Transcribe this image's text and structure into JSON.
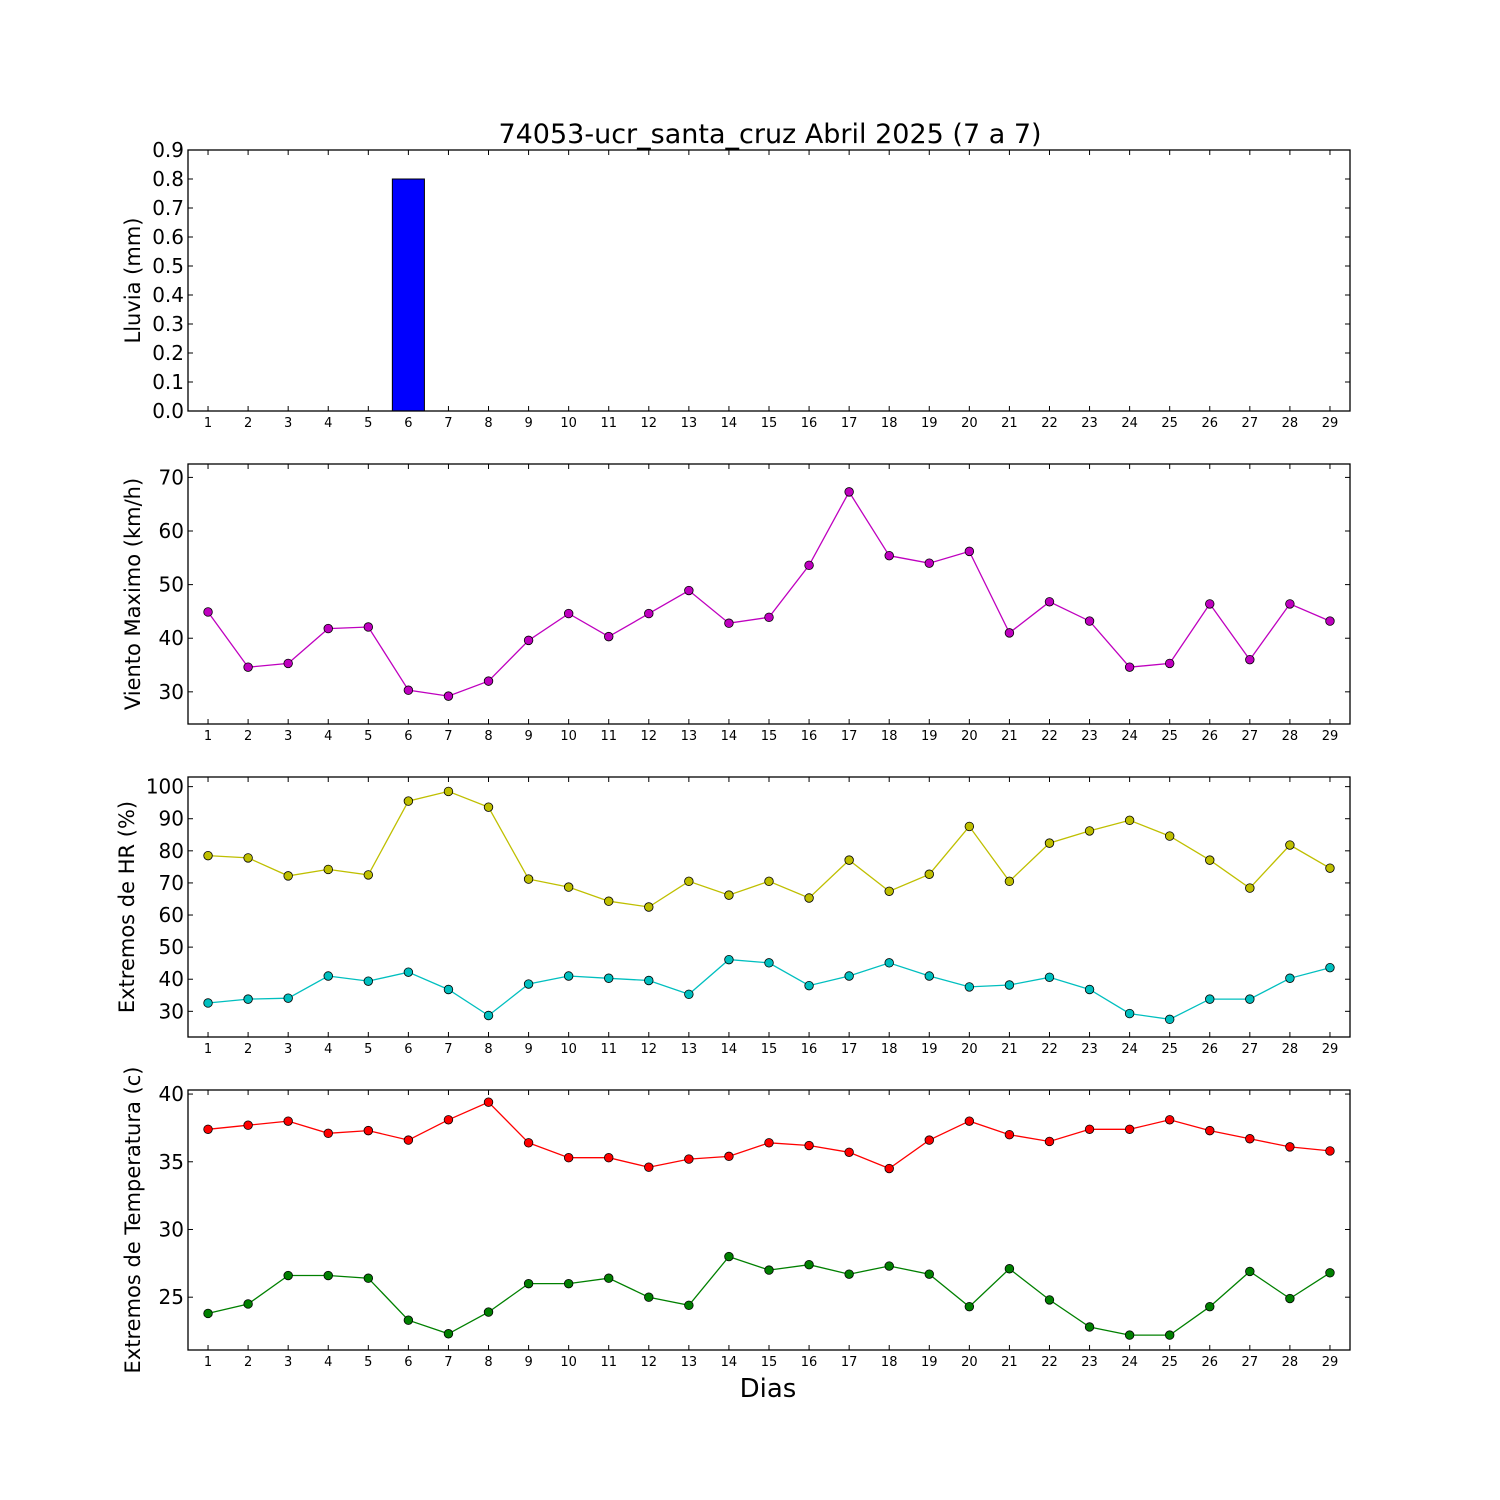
{
  "figure": {
    "title": "74053-ucr_santa_cruz Abril 2025  (7 a 7)",
    "xlabel": "Dias"
  },
  "chart_data": [
    {
      "type": "bar",
      "ylabel": "Lluvia (mm)",
      "ylim": [
        0,
        0.9
      ],
      "yticks": [
        0.0,
        0.1,
        0.2,
        0.3,
        0.4,
        0.5,
        0.6,
        0.7,
        0.8,
        0.9
      ],
      "ytick_decimals": 1,
      "categories": [
        1,
        2,
        3,
        4,
        5,
        6,
        7,
        8,
        9,
        10,
        11,
        12,
        13,
        14,
        15,
        16,
        17,
        18,
        19,
        20,
        21,
        22,
        23,
        24,
        25,
        26,
        27,
        28,
        29
      ],
      "series": [
        {
          "color": "#0000ff",
          "values": [
            0,
            0,
            0,
            0,
            0,
            0.8,
            0,
            0,
            0,
            0,
            0,
            0,
            0,
            0,
            0,
            0,
            0,
            0,
            0,
            0,
            0,
            0,
            0,
            0,
            0,
            0,
            0,
            0,
            0
          ]
        }
      ]
    },
    {
      "type": "line",
      "ylabel": "Viento Maximo (km/h)",
      "ylim": [
        24,
        72.5
      ],
      "yticks": [
        30,
        40,
        50,
        60,
        70
      ],
      "ytick_decimals": 0,
      "categories": [
        1,
        2,
        3,
        4,
        5,
        6,
        7,
        8,
        9,
        10,
        11,
        12,
        13,
        14,
        15,
        16,
        17,
        18,
        19,
        20,
        21,
        22,
        23,
        24,
        25,
        26,
        27,
        28,
        29
      ],
      "series": [
        {
          "color": "#bf00bf",
          "values": [
            44.9,
            34.6,
            35.3,
            41.8,
            42.1,
            30.3,
            29.2,
            32.0,
            39.6,
            44.6,
            40.3,
            44.6,
            48.9,
            42.8,
            43.9,
            53.6,
            67.3,
            55.4,
            54.0,
            56.2,
            41.0,
            46.8,
            43.2,
            34.6,
            35.3,
            46.4,
            36.0,
            46.4,
            43.2
          ]
        }
      ]
    },
    {
      "type": "line",
      "ylabel": "Extremos de HR (%)",
      "ylim": [
        22,
        103
      ],
      "yticks": [
        30,
        40,
        50,
        60,
        70,
        80,
        90,
        100
      ],
      "ytick_decimals": 0,
      "categories": [
        1,
        2,
        3,
        4,
        5,
        6,
        7,
        8,
        9,
        10,
        11,
        12,
        13,
        14,
        15,
        16,
        17,
        18,
        19,
        20,
        21,
        22,
        23,
        24,
        25,
        26,
        27,
        28,
        29
      ],
      "series": [
        {
          "color": "#bfbf00",
          "values": [
            78.5,
            77.8,
            72.2,
            74.2,
            72.5,
            95.5,
            98.5,
            93.6,
            71.2,
            68.7,
            64.3,
            62.5,
            70.5,
            66.2,
            70.5,
            65.3,
            77.1,
            67.4,
            72.7,
            87.6,
            70.5,
            82.4,
            86.2,
            89.5,
            84.6,
            77.1,
            68.4,
            81.8,
            74.6
          ]
        },
        {
          "color": "#00bfbf",
          "values": [
            32.6,
            33.8,
            34.1,
            41.0,
            39.4,
            42.2,
            36.8,
            28.7,
            38.5,
            41.0,
            40.3,
            39.6,
            35.3,
            46.1,
            45.1,
            38.0,
            41.0,
            45.1,
            41.0,
            37.6,
            38.2,
            40.6,
            36.8,
            29.3,
            27.5,
            33.8,
            33.8,
            40.3,
            43.6
          ]
        }
      ]
    },
    {
      "type": "line",
      "ylabel": "Extremos de Temperatura (c)",
      "ylim": [
        21.1,
        40.3
      ],
      "yticks": [
        25,
        30,
        35,
        40
      ],
      "ytick_decimals": 0,
      "categories": [
        1,
        2,
        3,
        4,
        5,
        6,
        7,
        8,
        9,
        10,
        11,
        12,
        13,
        14,
        15,
        16,
        17,
        18,
        19,
        20,
        21,
        22,
        23,
        24,
        25,
        26,
        27,
        28,
        29
      ],
      "series": [
        {
          "color": "#ff0000",
          "values": [
            37.4,
            37.7,
            38.0,
            37.1,
            37.3,
            36.6,
            38.1,
            39.4,
            36.4,
            35.3,
            35.3,
            34.6,
            35.2,
            35.4,
            36.4,
            36.2,
            35.7,
            34.5,
            36.6,
            38.0,
            37.0,
            36.5,
            37.4,
            37.4,
            38.1,
            37.3,
            36.7,
            36.1,
            35.8
          ]
        },
        {
          "color": "#008000",
          "values": [
            23.8,
            24.5,
            26.6,
            26.6,
            26.4,
            23.3,
            22.3,
            23.9,
            26.0,
            26.0,
            26.4,
            25.0,
            24.4,
            28.0,
            27.0,
            27.4,
            26.7,
            27.3,
            26.7,
            24.3,
            27.1,
            24.8,
            22.8,
            22.2,
            22.2,
            24.3,
            26.9,
            24.9,
            26.8
          ]
        }
      ]
    }
  ]
}
